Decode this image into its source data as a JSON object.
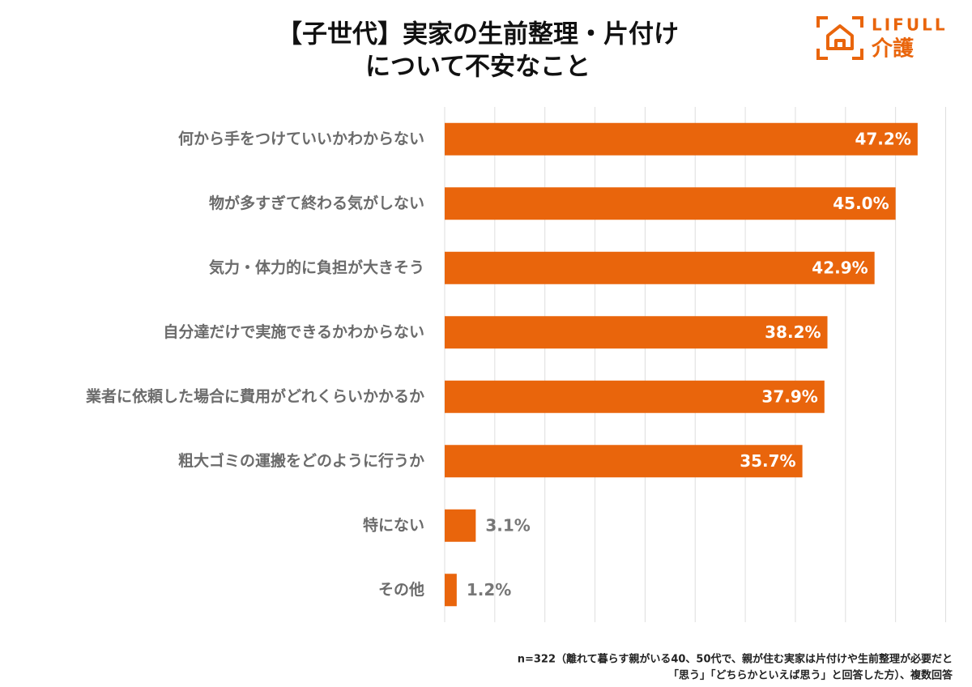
{
  "chart_data": {
    "type": "hbar",
    "title": [
      "【子世代】実家の生前整理・片付け",
      "について不安なこと"
    ],
    "logo": {
      "brand": "LIFULL",
      "service": "介護"
    },
    "categories": [
      "何から手をつけていいかわからない",
      "物が多すぎて終わる気がしない",
      "気力・体力的に負担が大きそう",
      "自分達だけで実施できるかわからない",
      "業者に依頼した場合に費用がどれくらいかかるか",
      "粗大ゴミの運搬をどのように行うか",
      "特にない",
      "その他"
    ],
    "values": [
      47.2,
      45.0,
      42.9,
      38.2,
      37.9,
      35.7,
      3.1,
      1.2
    ],
    "value_labels": [
      "47.2%",
      "45.0%",
      "42.9%",
      "38.2%",
      "37.9%",
      "35.7%",
      "3.1%",
      "1.2%"
    ],
    "color": "#e9650c",
    "xlim": [
      0,
      50
    ],
    "xticks": [
      0,
      5,
      10,
      15,
      20,
      25,
      30,
      35,
      40,
      45,
      50
    ],
    "grid": true,
    "note": [
      "n=322（離れて暮らす親がいる40、50代で、親が住む実家は片付けや生前整理が必要だと",
      "「思う」「どちらかといえば思う」と回答した方）、複数回答"
    ]
  }
}
